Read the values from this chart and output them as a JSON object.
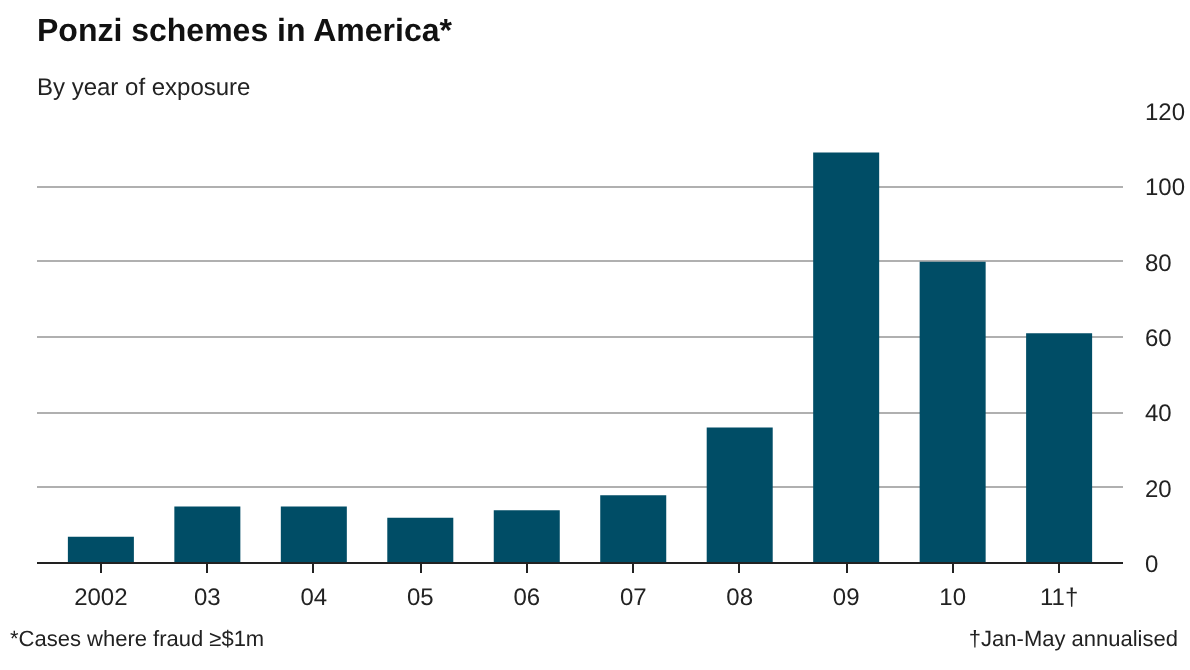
{
  "chart_data": {
    "type": "bar",
    "title": "Ponzi schemes in America*",
    "subtitle": "By year of exposure",
    "categories": [
      "2002",
      "03",
      "04",
      "05",
      "06",
      "07",
      "08",
      "09",
      "10",
      "11†"
    ],
    "values": [
      7,
      15,
      15,
      12,
      14,
      18,
      36,
      109,
      80,
      61
    ],
    "color": "#004d66",
    "ylim": [
      0,
      120
    ],
    "yticks": [
      0,
      20,
      40,
      60,
      80,
      100,
      120
    ],
    "grid": "y",
    "annotations": [
      "*Cases where fraud ≥$1m",
      "†Jan-May annualised"
    ]
  }
}
